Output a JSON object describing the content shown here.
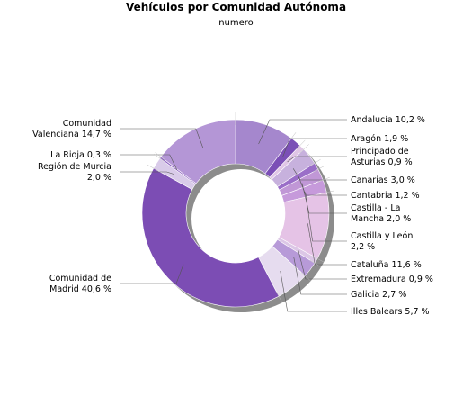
{
  "chart_data": {
    "type": "pie",
    "variant": "donut",
    "title": "Vehículos por Comunidad Autónoma",
    "subtitle": "numero",
    "slices": [
      {
        "label": [
          "Andalucía 10,2 %"
        ],
        "value": 10.2,
        "color": "#a587cd"
      },
      {
        "label": [
          "Aragón 1,9 %"
        ],
        "value": 1.9,
        "color": "#7b4fb6"
      },
      {
        "label": [
          "Principado de",
          "Asturias 0,9 %"
        ],
        "value": 0.9,
        "color": "#e0c6e6"
      },
      {
        "label": [
          "Canarias 3,0 %"
        ],
        "value": 3.0,
        "color": "#c7b1dd"
      },
      {
        "label": [
          "Cantabria 1,2 %"
        ],
        "value": 1.2,
        "color": "#9a6ec8"
      },
      {
        "label": [
          "Castilla - La",
          "Mancha 2,0 %"
        ],
        "value": 2.0,
        "color": "#c097d6"
      },
      {
        "label": [
          "Castilla y León",
          "2,2 %"
        ],
        "value": 2.2,
        "color": "#c69adb"
      },
      {
        "label": [
          "Cataluña 11,6 %"
        ],
        "value": 11.6,
        "color": "#e5c3e6"
      },
      {
        "label": [
          "Extremadura 0,9 %"
        ],
        "value": 0.9,
        "color": "#dcc7e6"
      },
      {
        "label": [
          "Galicia 2,7 %"
        ],
        "value": 2.7,
        "color": "#b79ad8"
      },
      {
        "label": [
          "Illes Balears 5,7 %"
        ],
        "value": 5.7,
        "color": "#e6dcef"
      },
      {
        "label": [
          "Comunidad de",
          "Madrid 40,6 %"
        ],
        "value": 40.6,
        "color": "#7c4db4"
      },
      {
        "label": [
          "Región de Murcia",
          "2,0 %"
        ],
        "value": 2.0,
        "color": "#d9cbe9"
      },
      {
        "label": [
          "La Rioja 0,3 %"
        ],
        "value": 0.3,
        "color": "#8e63c2"
      },
      {
        "label": [
          "Comunidad",
          "Valenciana 14,7 %"
        ],
        "value": 14.7,
        "color": "#b496d6"
      }
    ],
    "start": "12 o'clock",
    "direction": "clockwise",
    "legend": "none"
  }
}
